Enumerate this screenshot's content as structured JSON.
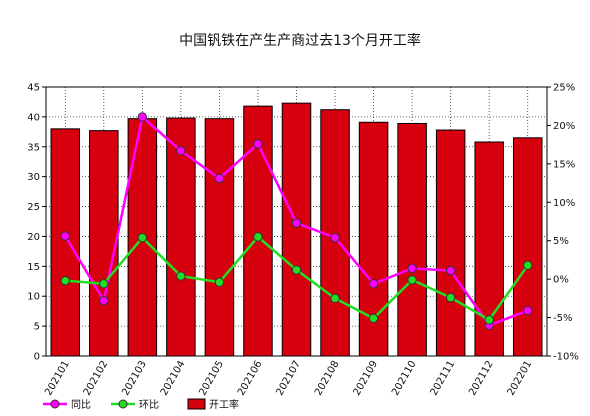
{
  "chart_data": {
    "type": "bar",
    "title": "中国钒铁在产生产商过去13个月开工率",
    "categories": [
      "202101",
      "202102",
      "202103",
      "202104",
      "202105",
      "202106",
      "202107",
      "202108",
      "202109",
      "202110",
      "202111",
      "202112",
      "202201"
    ],
    "series": [
      {
        "name": "开工率",
        "type": "bar",
        "axis": "left",
        "color": "#d6000f",
        "values": [
          38.0,
          37.7,
          39.7,
          39.8,
          39.7,
          41.8,
          42.3,
          41.2,
          39.1,
          38.9,
          37.8,
          35.8,
          36.5
        ]
      },
      {
        "name": "同比",
        "type": "line",
        "axis": "right",
        "color": "#ff00ff",
        "values": [
          5.6,
          -2.8,
          21.1,
          16.7,
          13.1,
          17.6,
          7.3,
          5.4,
          -0.6,
          1.4,
          1.1,
          -6.0,
          -4.1
        ]
      },
      {
        "name": "环比",
        "type": "line",
        "axis": "right",
        "color": "#22dd22",
        "values": [
          -0.2,
          -0.6,
          5.4,
          0.4,
          -0.4,
          5.5,
          1.2,
          -2.5,
          -5.1,
          -0.1,
          -2.4,
          -5.3,
          1.8
        ]
      }
    ],
    "ylim_left": [
      0,
      45
    ],
    "yticks_left": [
      "0",
      "5",
      "10",
      "15",
      "20",
      "25",
      "30",
      "35",
      "40",
      "45"
    ],
    "ylim_right": [
      -10,
      25
    ],
    "yticks_right": [
      "-10%",
      "-5%",
      "0%",
      "5%",
      "10%",
      "15%",
      "20%",
      "25%"
    ],
    "grid": true,
    "legend_position": "bottom-left"
  }
}
